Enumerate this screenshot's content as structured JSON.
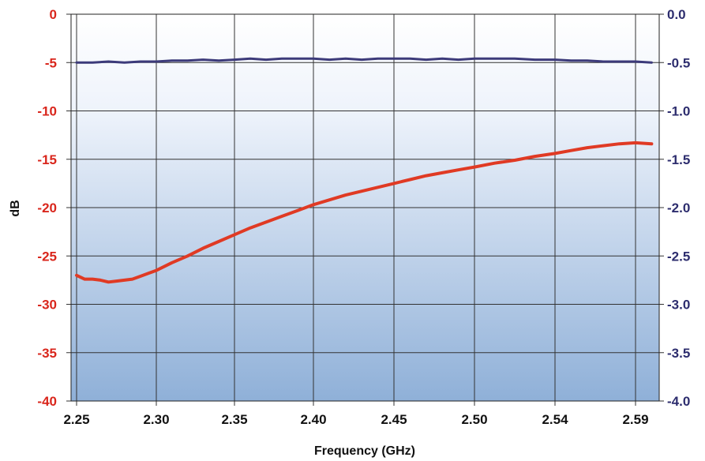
{
  "chart_data": {
    "type": "line",
    "title": "",
    "xlabel": "Frequency (GHz)",
    "ylabel": "dB",
    "x_tick_labels": [
      "2.25",
      "2.30",
      "2.35",
      "2.40",
      "2.45",
      "2.50",
      "2.54",
      "2.59"
    ],
    "ylim": [
      -40,
      0
    ],
    "y_ticks": [
      0,
      -5,
      -10,
      -15,
      -20,
      -25,
      -30,
      -35,
      -40
    ],
    "y2lim": [
      -4.0,
      0.0
    ],
    "y2_tick_labels": [
      "0.0",
      "-0.5",
      "-1.0",
      "-1.5",
      "-2.0",
      "-2.5",
      "-3.0",
      "-3.5",
      "-4.0"
    ],
    "grid": true,
    "legend": "none",
    "series": [
      {
        "axis": "left",
        "color": "#e03a24",
        "x": [
          2.25,
          2.255,
          2.26,
          2.265,
          2.27,
          2.275,
          2.28,
          2.285,
          2.29,
          2.295,
          2.3,
          2.31,
          2.32,
          2.33,
          2.34,
          2.35,
          2.36,
          2.37,
          2.38,
          2.39,
          2.4,
          2.41,
          2.42,
          2.43,
          2.44,
          2.45,
          2.46,
          2.47,
          2.48,
          2.49,
          2.5,
          2.51,
          2.52,
          2.53,
          2.54,
          2.55,
          2.56,
          2.57,
          2.58,
          2.59,
          2.6
        ],
        "values": [
          -27.0,
          -27.4,
          -27.4,
          -27.5,
          -27.7,
          -27.6,
          -27.5,
          -27.4,
          -27.1,
          -26.8,
          -26.5,
          -25.7,
          -25.0,
          -24.2,
          -23.5,
          -22.8,
          -22.1,
          -21.5,
          -20.9,
          -20.3,
          -19.7,
          -19.2,
          -18.7,
          -18.3,
          -17.9,
          -17.5,
          -17.1,
          -16.7,
          -16.4,
          -16.1,
          -15.8,
          -15.4,
          -15.1,
          -14.7,
          -14.4,
          -14.1,
          -13.8,
          -13.6,
          -13.4,
          -13.3,
          -13.4
        ]
      },
      {
        "axis": "right",
        "color": "#3c3a7a",
        "x": [
          2.25,
          2.26,
          2.27,
          2.28,
          2.29,
          2.3,
          2.31,
          2.32,
          2.33,
          2.34,
          2.35,
          2.36,
          2.37,
          2.38,
          2.39,
          2.4,
          2.41,
          2.42,
          2.43,
          2.44,
          2.45,
          2.46,
          2.47,
          2.48,
          2.49,
          2.5,
          2.51,
          2.52,
          2.53,
          2.54,
          2.55,
          2.56,
          2.57,
          2.58,
          2.59,
          2.6
        ],
        "values": [
          -0.5,
          -0.5,
          -0.49,
          -0.5,
          -0.49,
          -0.49,
          -0.48,
          -0.48,
          -0.47,
          -0.48,
          -0.47,
          -0.46,
          -0.47,
          -0.46,
          -0.46,
          -0.46,
          -0.47,
          -0.46,
          -0.47,
          -0.46,
          -0.46,
          -0.46,
          -0.47,
          -0.46,
          -0.47,
          -0.46,
          -0.46,
          -0.46,
          -0.47,
          -0.47,
          -0.48,
          -0.48,
          -0.49,
          -0.49,
          -0.49,
          -0.5
        ]
      }
    ]
  }
}
